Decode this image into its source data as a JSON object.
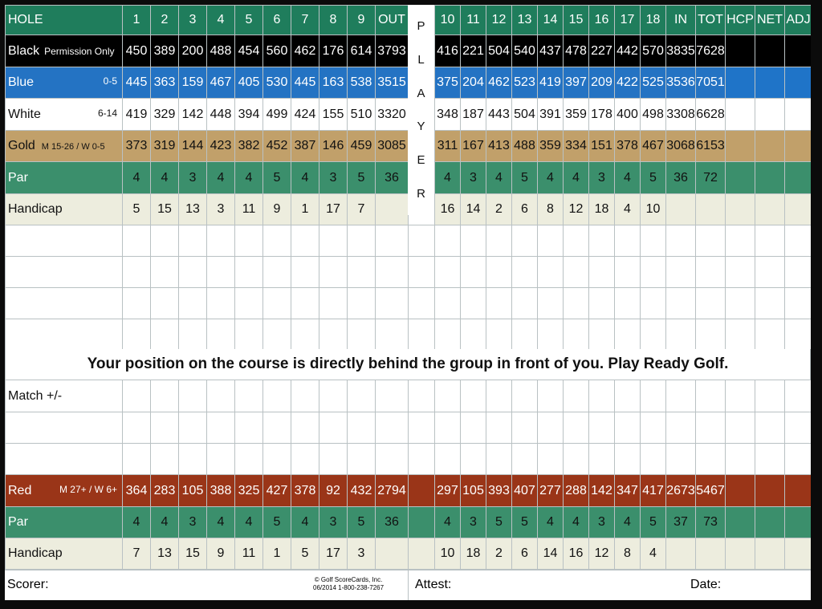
{
  "header": {
    "hole_label": "HOLE",
    "front_holes": [
      "1",
      "2",
      "3",
      "4",
      "5",
      "6",
      "7",
      "8",
      "9"
    ],
    "out_label": "OUT",
    "back_holes": [
      "10",
      "11",
      "12",
      "13",
      "14",
      "15",
      "16",
      "17",
      "18"
    ],
    "in_label": "IN",
    "tot_label": "TOT",
    "hcp_label": "HCP",
    "net_label": "NET",
    "adj_label": "ADJ"
  },
  "player_letters": [
    "P",
    "L",
    "A",
    "Y",
    "E",
    "R"
  ],
  "tees": {
    "black": {
      "name": "Black",
      "note": "Permission Only",
      "front": [
        "450",
        "389",
        "200",
        "488",
        "454",
        "560",
        "462",
        "176",
        "614"
      ],
      "out": "3793",
      "back": [
        "416",
        "221",
        "504",
        "540",
        "437",
        "478",
        "227",
        "442",
        "570"
      ],
      "in": "3835",
      "tot": "7628"
    },
    "blue": {
      "name": "Blue",
      "note": "0-5",
      "front": [
        "445",
        "363",
        "159",
        "467",
        "405",
        "530",
        "445",
        "163",
        "538"
      ],
      "out": "3515",
      "back": [
        "375",
        "204",
        "462",
        "523",
        "419",
        "397",
        "209",
        "422",
        "525"
      ],
      "in": "3536",
      "tot": "7051"
    },
    "white": {
      "name": "White",
      "note": "6-14",
      "front": [
        "419",
        "329",
        "142",
        "448",
        "394",
        "499",
        "424",
        "155",
        "510"
      ],
      "out": "3320",
      "back": [
        "348",
        "187",
        "443",
        "504",
        "391",
        "359",
        "178",
        "400",
        "498"
      ],
      "in": "3308",
      "tot": "6628"
    },
    "gold": {
      "name": "Gold",
      "note": "M 15-26 / W 0-5",
      "front": [
        "373",
        "319",
        "144",
        "423",
        "382",
        "452",
        "387",
        "146",
        "459"
      ],
      "out": "3085",
      "back": [
        "311",
        "167",
        "413",
        "488",
        "359",
        "334",
        "151",
        "378",
        "467"
      ],
      "in": "3068",
      "tot": "6153"
    },
    "red": {
      "name": "Red",
      "note": "M 27+ / W 6+",
      "front": [
        "364",
        "283",
        "105",
        "388",
        "325",
        "427",
        "378",
        "92",
        "432"
      ],
      "out": "2794",
      "back": [
        "297",
        "105",
        "393",
        "407",
        "277",
        "288",
        "142",
        "347",
        "417"
      ],
      "in": "2673",
      "tot": "5467"
    }
  },
  "mens_par": {
    "label": "Par",
    "front": [
      "4",
      "4",
      "3",
      "4",
      "4",
      "5",
      "4",
      "3",
      "5"
    ],
    "out": "36",
    "back": [
      "4",
      "3",
      "4",
      "5",
      "4",
      "4",
      "3",
      "4",
      "5"
    ],
    "in": "36",
    "tot": "72"
  },
  "mens_handicap": {
    "label": "Handicap",
    "front": [
      "5",
      "15",
      "13",
      "3",
      "11",
      "9",
      "1",
      "17",
      "7"
    ],
    "back": [
      "16",
      "14",
      "2",
      "6",
      "8",
      "12",
      "18",
      "4",
      "10"
    ]
  },
  "womens_par": {
    "label": "Par",
    "front": [
      "4",
      "4",
      "3",
      "4",
      "4",
      "5",
      "4",
      "3",
      "5"
    ],
    "out": "36",
    "back": [
      "4",
      "3",
      "5",
      "5",
      "4",
      "4",
      "3",
      "4",
      "5"
    ],
    "in": "37",
    "tot": "73"
  },
  "womens_handicap": {
    "label": "Handicap",
    "front": [
      "7",
      "13",
      "15",
      "9",
      "11",
      "1",
      "5",
      "17",
      "3"
    ],
    "back": [
      "10",
      "18",
      "2",
      "6",
      "14",
      "16",
      "12",
      "8",
      "4"
    ]
  },
  "tagline": "Your position on the course is directly behind the group in front of you. Play Ready Golf.",
  "match_label": "Match +/-",
  "footer": {
    "scorer_label": "Scorer:",
    "copyright_line1": "© Golf ScoreCards, Inc.",
    "copyright_line2": "06/2014  1-800-238-7267",
    "attest_label": "Attest:",
    "date_label": "Date:"
  },
  "colors": {
    "header_green": "#1f7d5c",
    "blue": "#2473c3",
    "gold": "#c1a06a",
    "par_green": "#3b8f6c",
    "handicap_cream": "#ededde",
    "red": "#9a3518"
  }
}
